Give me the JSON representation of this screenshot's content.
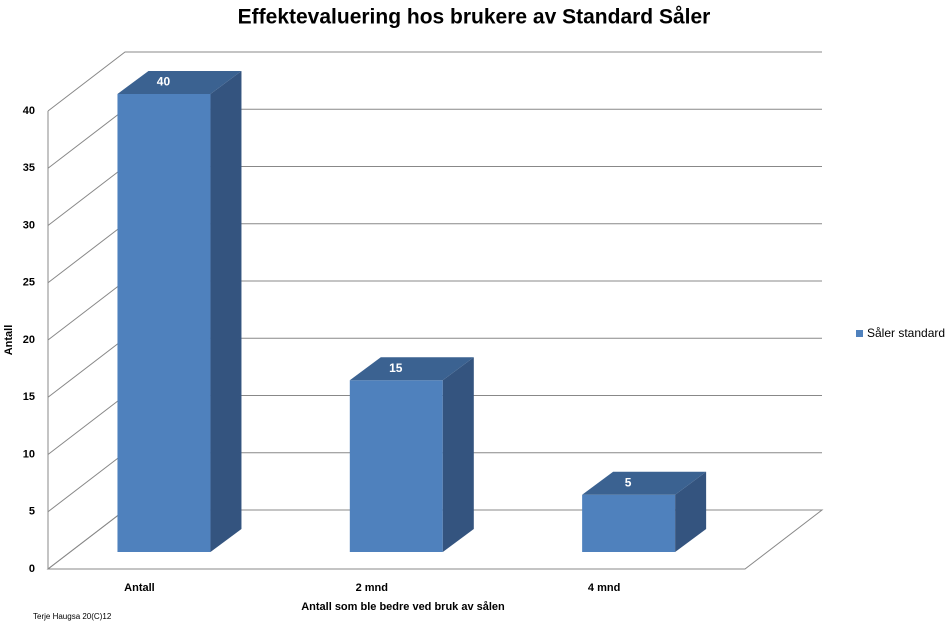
{
  "chart_data": {
    "type": "bar3d",
    "title": "Effektevaluering hos brukere av  Standard Såler",
    "categories": [
      "Antall",
      "2 mnd",
      "4 mnd"
    ],
    "series": [
      {
        "name": "Såler standard",
        "color": "#4f81bd",
        "values": [
          40,
          15,
          5
        ]
      }
    ],
    "x_label": "Antall som ble bedre ved bruk av sålen",
    "y_label": "Antall",
    "ylim": [
      0,
      40
    ],
    "yticks": [
      0,
      5,
      10,
      15,
      20,
      25,
      30,
      35,
      40
    ],
    "grid": true,
    "legend": "right",
    "footnote": "Terje  Haugsa  20(C)12"
  }
}
